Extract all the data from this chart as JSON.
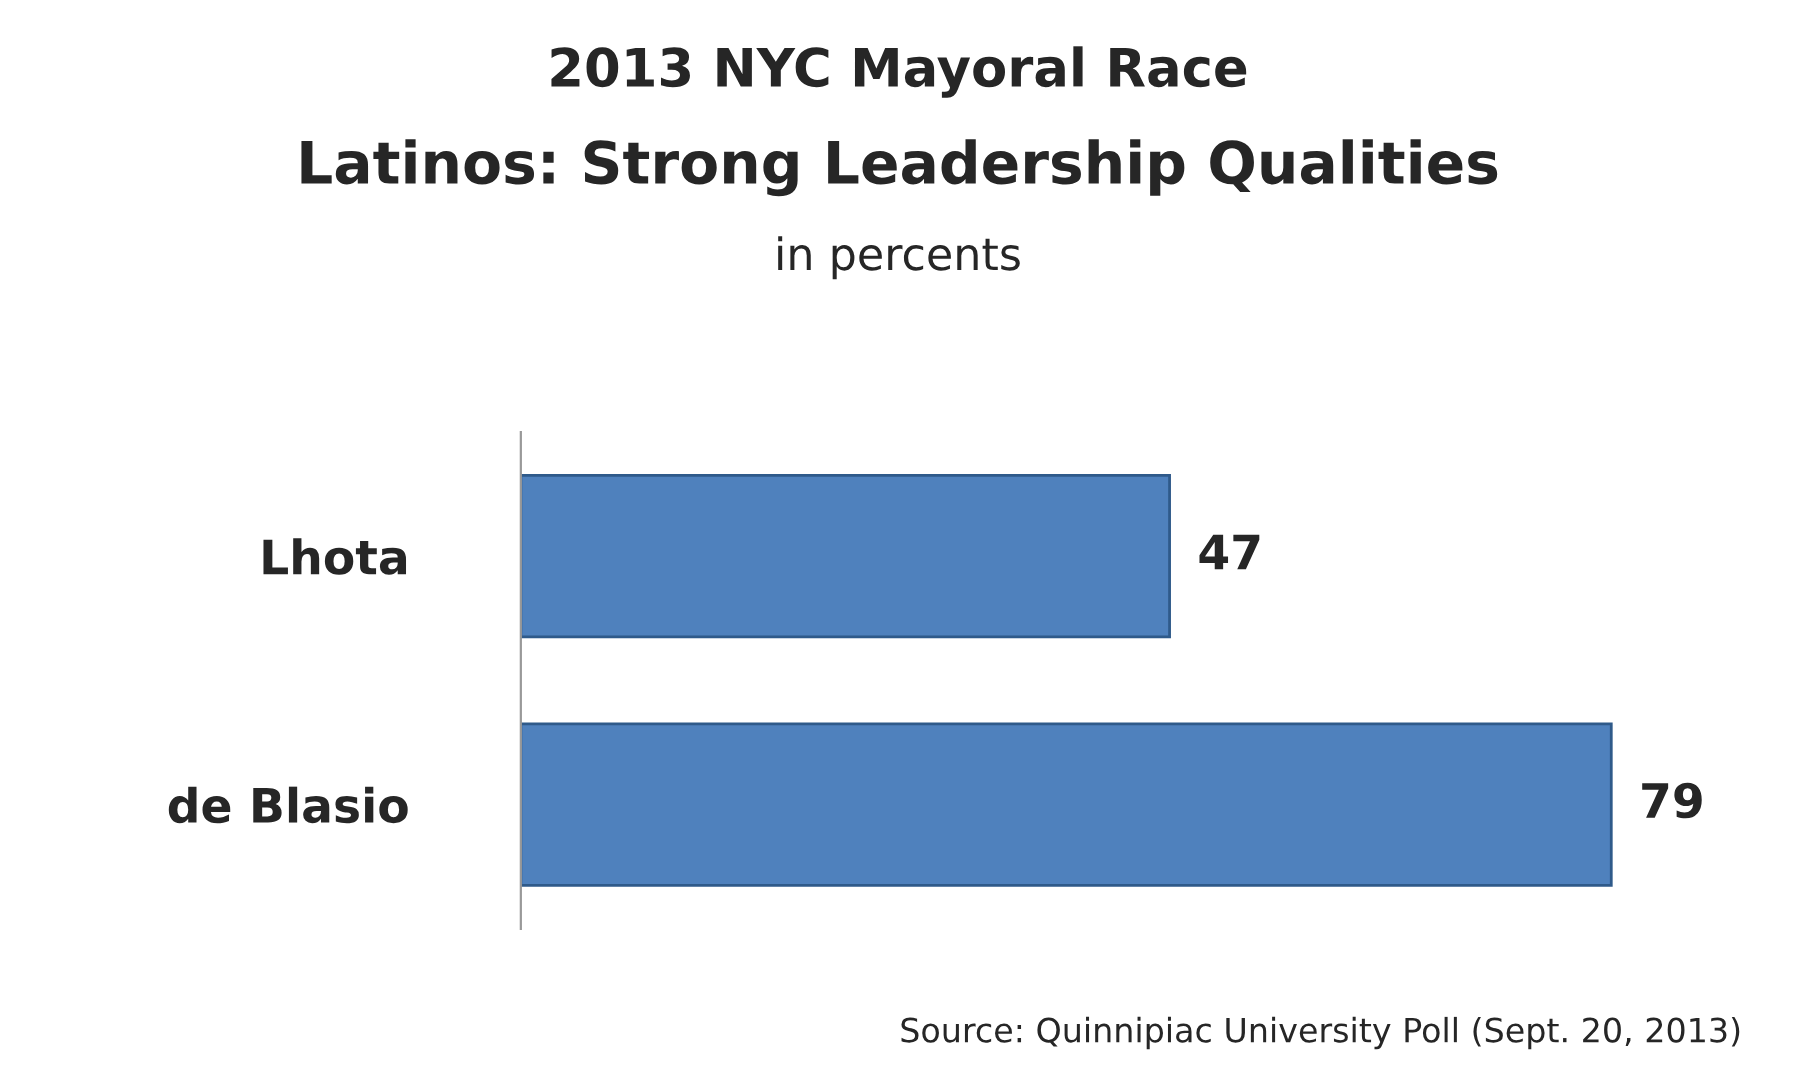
{
  "chart_data": {
    "type": "bar",
    "orientation": "horizontal",
    "title": "2013 NYC Mayoral Race",
    "subtitle": "Latinos: Strong Leadership Qualities",
    "categories": [
      "Lhota",
      "de Blasio"
    ],
    "values": [
      47,
      79
    ],
    "color": "#4f81bd",
    "data_labels": true,
    "annotations": [
      "in percents",
      "Source: Quinnipiac University Poll (Sept. 20, 2013)"
    ]
  }
}
